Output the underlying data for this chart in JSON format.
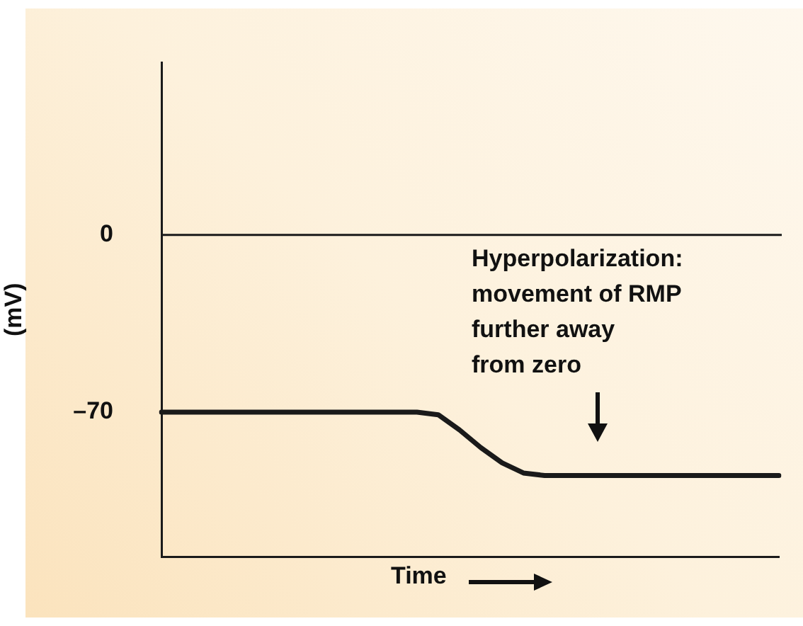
{
  "chart_data": {
    "type": "line",
    "xlabel": "Time",
    "ylabel": "(mV)",
    "categories": [
      null,
      null,
      null,
      null,
      null,
      null,
      null,
      null,
      null,
      null,
      null,
      null,
      null,
      null,
      null,
      null,
      null,
      null,
      null,
      null,
      null,
      null,
      null,
      null,
      null,
      null,
      null,
      null,
      null,
      null
    ],
    "series": [
      {
        "color": "#1a1a1a",
        "values": [
          -70,
          -70,
          -70,
          -70,
          -70,
          -70,
          -70,
          -70,
          -70,
          -70,
          -70,
          -70,
          -70,
          -71,
          -77,
          -84,
          -90,
          -94,
          -95,
          -95,
          -95,
          -95,
          -95,
          -95,
          -95,
          -95,
          -95,
          -95,
          -95,
          -95
        ]
      }
    ],
    "ylim": [
      -127,
      68
    ],
    "yticks": [
      0,
      {
        "value": -70,
        "label": "–70"
      }
    ],
    "ref_lines": [
      {
        "axis": "y",
        "value": 0,
        "color": "#1a1a1a"
      }
    ],
    "annotations": [
      "Hyperpolarization:\nmovement of RMP\nfurther away\nfrom zero"
    ],
    "marker": "none",
    "tick_labels": "y",
    "grid": false,
    "legend": false
  }
}
